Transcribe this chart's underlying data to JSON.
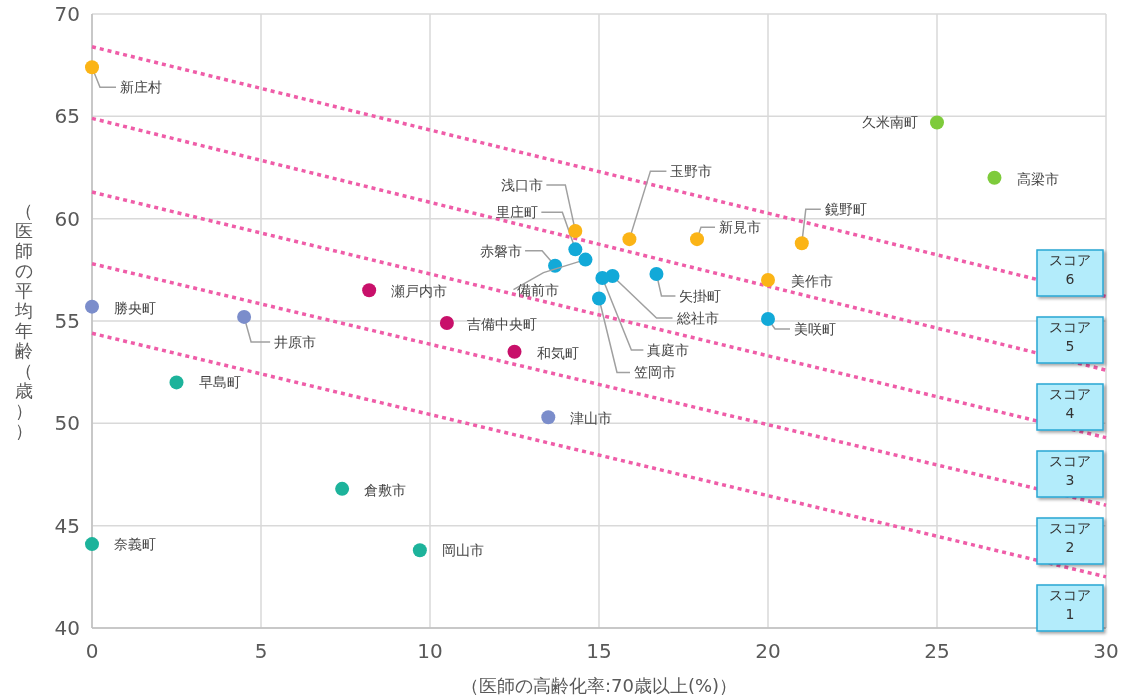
{
  "chart_data": {
    "type": "scatter",
    "xlabel": "（医師の高齢化率:70歳以上(%)）",
    "ylabel": "（医師の平均年齢（歳））",
    "xlim": [
      0,
      30
    ],
    "ylim": [
      40,
      70
    ],
    "xticks": [
      0,
      5,
      10,
      15,
      20,
      25,
      30
    ],
    "yticks": [
      40,
      45,
      50,
      55,
      60,
      65,
      70
    ],
    "grid": true,
    "marker": "circle",
    "series": [
      {
        "name": "新庄村",
        "color": "#fbb416",
        "x": [
          0
        ],
        "values": [
          67.4
        ]
      },
      {
        "name": "勝央町",
        "color": "#7b8dcb",
        "x": [
          0
        ],
        "values": [
          55.7
        ]
      },
      {
        "name": "井原市",
        "color": "#7b8dcb",
        "x": [
          4.5
        ],
        "values": [
          55.2
        ]
      },
      {
        "name": "早島町",
        "color": "#1db39b",
        "x": [
          2.5
        ],
        "values": [
          52.0
        ]
      },
      {
        "name": "奈義町",
        "color": "#1db39b",
        "x": [
          0
        ],
        "values": [
          44.1
        ]
      },
      {
        "name": "倉敷市",
        "color": "#1db39b",
        "x": [
          7.4
        ],
        "values": [
          46.8
        ]
      },
      {
        "name": "岡山市",
        "color": "#1db39b",
        "x": [
          9.7
        ],
        "values": [
          43.8
        ]
      },
      {
        "name": "津山市",
        "color": "#7b8dcb",
        "x": [
          13.5
        ],
        "values": [
          50.3
        ]
      },
      {
        "name": "瀬戸内市",
        "color": "#c8106a",
        "x": [
          8.2
        ],
        "values": [
          56.5
        ]
      },
      {
        "name": "吉備中央町",
        "color": "#c8106a",
        "x": [
          10.5
        ],
        "values": [
          54.9
        ]
      },
      {
        "name": "和気町",
        "color": "#c8106a",
        "x": [
          12.5
        ],
        "values": [
          53.5
        ]
      },
      {
        "name": "赤磐市",
        "color": "#12a9d8",
        "x": [
          13.7
        ],
        "values": [
          57.7
        ]
      },
      {
        "name": "里庄町",
        "color": "#12a9d8",
        "x": [
          14.3
        ],
        "values": [
          58.5
        ]
      },
      {
        "name": "浅口市",
        "color": "#fbb416",
        "x": [
          14.3
        ],
        "values": [
          59.4
        ]
      },
      {
        "name": "備前市",
        "color": "#12a9d8",
        "x": [
          14.6
        ],
        "values": [
          58.0
        ]
      },
      {
        "name": "総社市",
        "color": "#12a9d8",
        "x": [
          15.4
        ],
        "values": [
          57.2
        ]
      },
      {
        "name": "真庭市",
        "color": "#12a9d8",
        "x": [
          15.1
        ],
        "values": [
          57.1
        ]
      },
      {
        "name": "笠岡市",
        "color": "#12a9d8",
        "x": [
          15.0
        ],
        "values": [
          56.1
        ]
      },
      {
        "name": "玉野市",
        "color": "#fbb416",
        "x": [
          15.9
        ],
        "values": [
          59.0
        ]
      },
      {
        "name": "矢掛町",
        "color": "#12a9d8",
        "x": [
          16.7
        ],
        "values": [
          57.3
        ]
      },
      {
        "name": "新見市",
        "color": "#fbb416",
        "x": [
          17.9
        ],
        "values": [
          59.0
        ]
      },
      {
        "name": "美作市",
        "color": "#fbb416",
        "x": [
          20.0
        ],
        "values": [
          57.0
        ]
      },
      {
        "name": "美咲町",
        "color": "#12a9d8",
        "x": [
          20.0
        ],
        "values": [
          55.1
        ]
      },
      {
        "name": "鏡野町",
        "color": "#fbb416",
        "x": [
          21.0
        ],
        "values": [
          58.8
        ]
      },
      {
        "name": "久米南町",
        "color": "#7ecb3b",
        "x": [
          25.0
        ],
        "values": [
          64.7
        ]
      },
      {
        "name": "高梁市",
        "color": "#7ecb3b",
        "x": [
          26.7
        ],
        "values": [
          62.0
        ]
      },
      {
        "type": "line",
        "color": "#ef5da8",
        "line_style": "dotted",
        "marker": "none",
        "x": [
          0,
          30
        ],
        "values": [
          68.4,
          56.2
        ]
      },
      {
        "type": "line",
        "color": "#ef5da8",
        "line_style": "dotted",
        "marker": "none",
        "x": [
          0,
          30
        ],
        "values": [
          64.9,
          52.6
        ]
      },
      {
        "type": "line",
        "color": "#ef5da8",
        "line_style": "dotted",
        "marker": "none",
        "x": [
          0,
          30
        ],
        "values": [
          61.3,
          49.3
        ]
      },
      {
        "type": "line",
        "color": "#ef5da8",
        "line_style": "dotted",
        "marker": "none",
        "x": [
          0,
          30
        ],
        "values": [
          57.8,
          46.0
        ]
      },
      {
        "type": "line",
        "color": "#ef5da8",
        "line_style": "dotted",
        "marker": "none",
        "x": [
          0,
          30
        ],
        "values": [
          54.4,
          42.5
        ]
      }
    ],
    "annotations": [
      "スコア\n6",
      "スコア\n5",
      "スコア\n4",
      "スコア\n3",
      "スコア\n2",
      "スコア\n1"
    ]
  }
}
